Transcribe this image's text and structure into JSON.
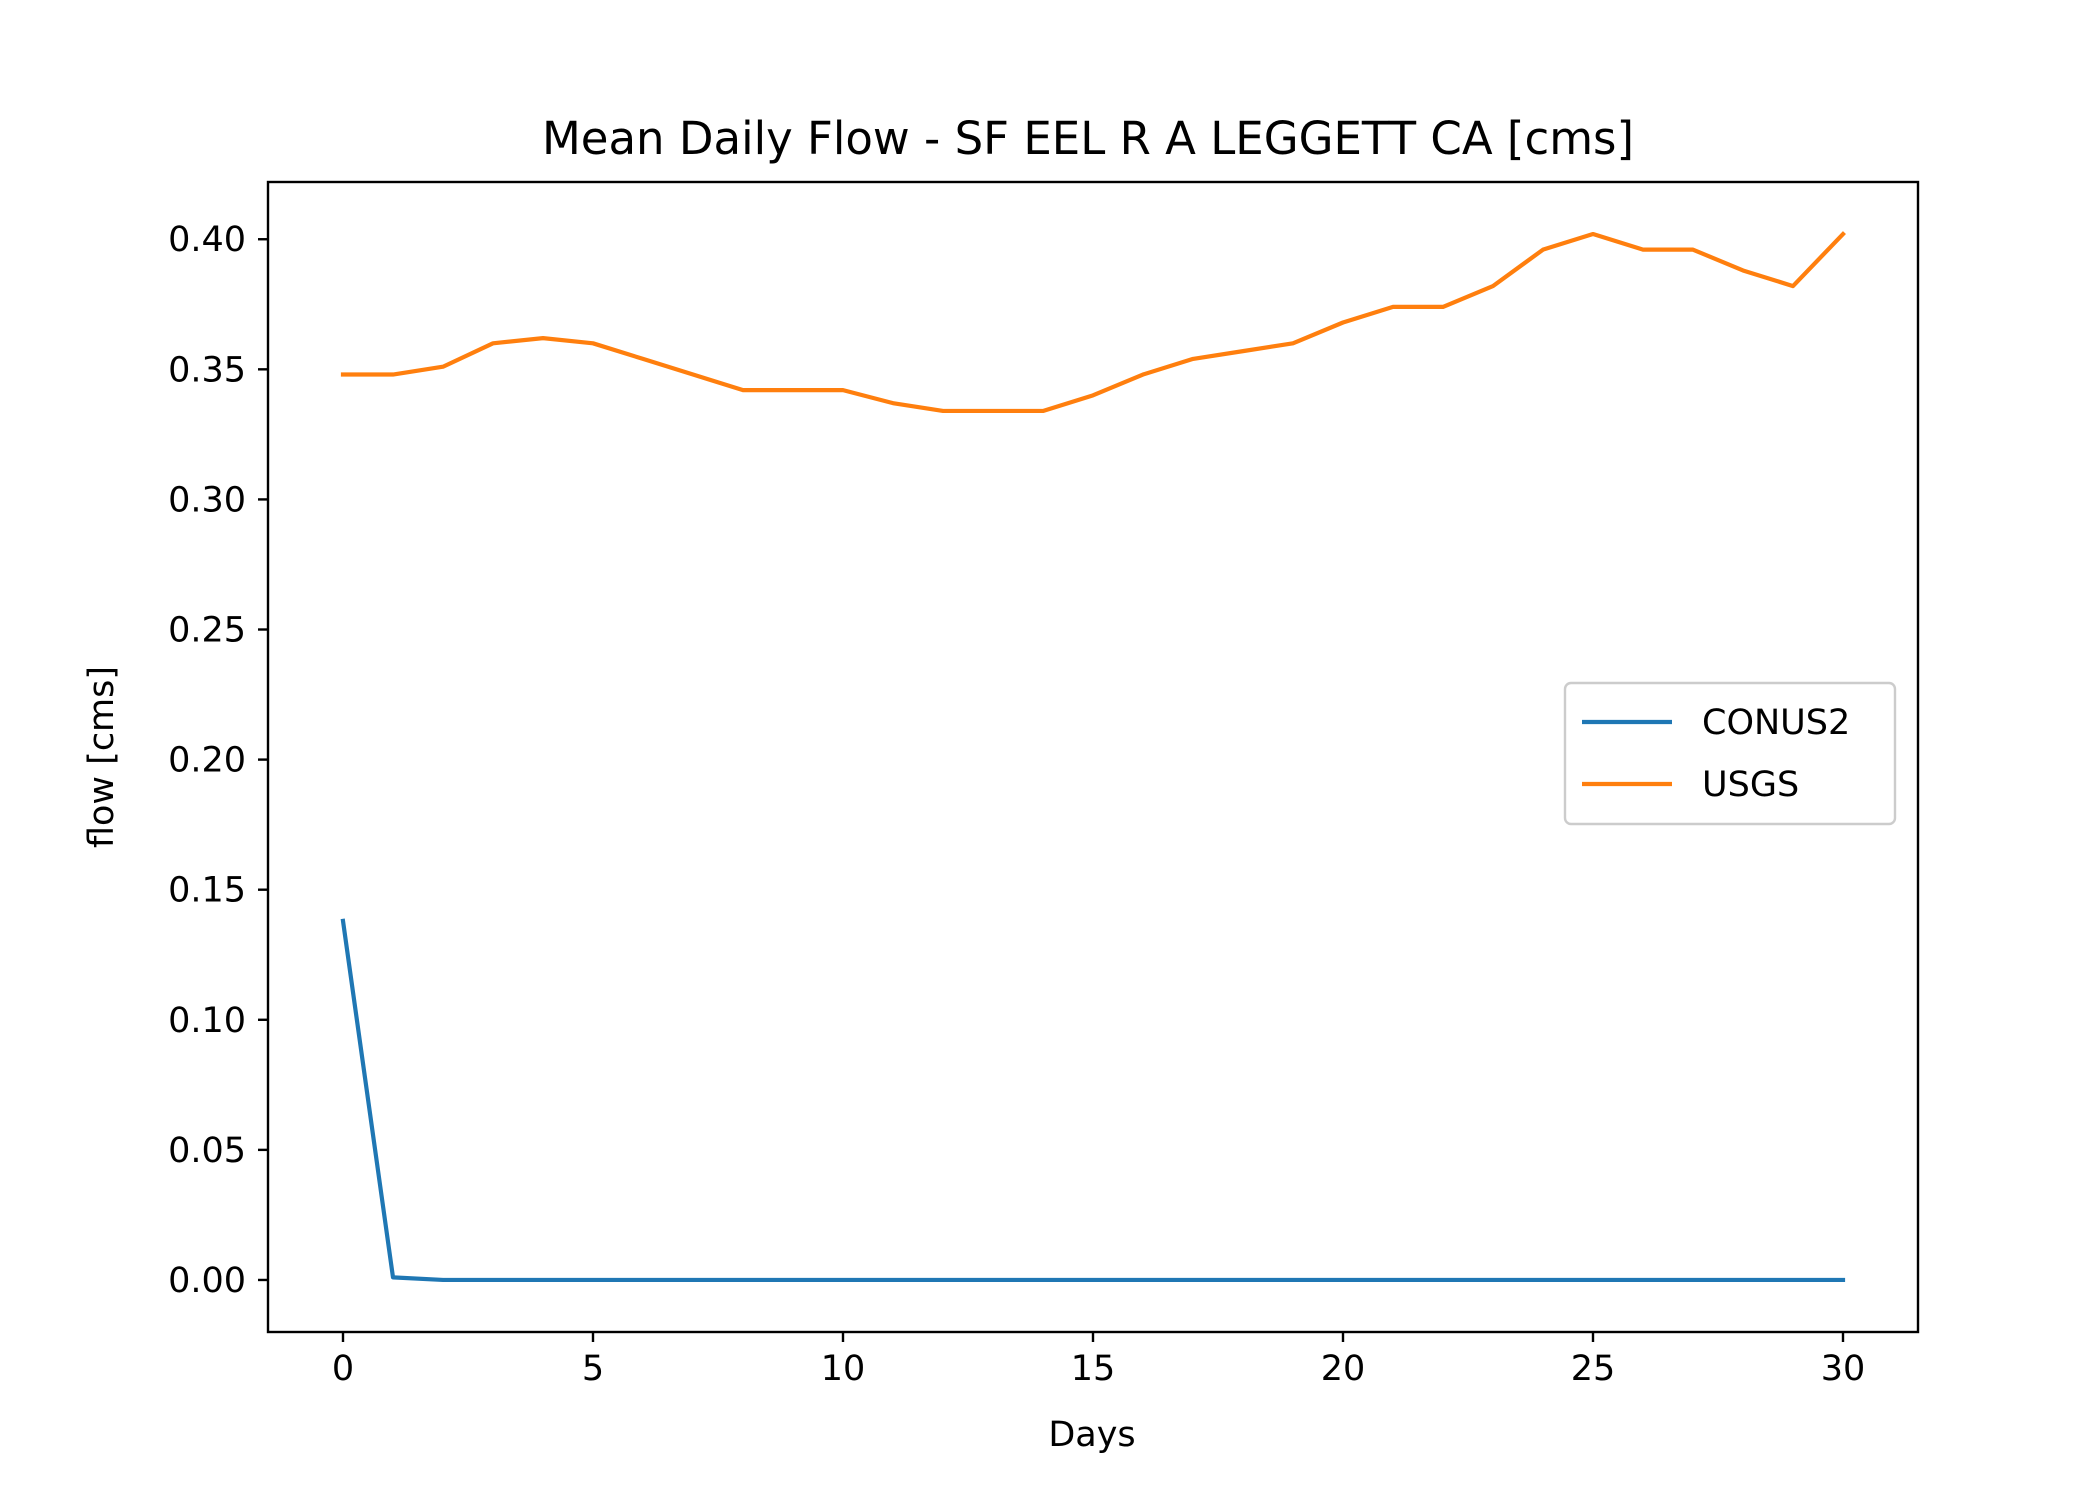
{
  "chart_data": {
    "type": "line",
    "title": "Mean Daily Flow - SF EEL R A LEGGETT CA [cms]",
    "xlabel": "Days",
    "ylabel": "flow [cms]",
    "xlim": [
      -1.5,
      31.5
    ],
    "ylim": [
      -0.02,
      0.422
    ],
    "xticks": [
      0,
      5,
      10,
      15,
      20,
      25,
      30
    ],
    "xtick_labels": [
      "0",
      "5",
      "10",
      "15",
      "20",
      "25",
      "30"
    ],
    "yticks": [
      0.0,
      0.05,
      0.1,
      0.15,
      0.2,
      0.25,
      0.3,
      0.35,
      0.4
    ],
    "ytick_labels": [
      "0.00",
      "0.05",
      "0.10",
      "0.15",
      "0.20",
      "0.25",
      "0.30",
      "0.35",
      "0.40"
    ],
    "grid": false,
    "legend_position": "center-right",
    "x": [
      0,
      1,
      2,
      3,
      4,
      5,
      6,
      7,
      8,
      9,
      10,
      11,
      12,
      13,
      14,
      15,
      16,
      17,
      18,
      19,
      20,
      21,
      22,
      23,
      24,
      25,
      26,
      27,
      28,
      29,
      30
    ],
    "series": [
      {
        "name": "CONUS2",
        "color": "#1f77b4",
        "values": [
          0.138,
          0.001,
          0.0,
          0.0,
          0.0,
          0.0,
          0.0,
          0.0,
          0.0,
          0.0,
          0.0,
          0.0,
          0.0,
          0.0,
          0.0,
          0.0,
          0.0,
          0.0,
          0.0,
          0.0,
          0.0,
          0.0,
          0.0,
          0.0,
          0.0,
          0.0,
          0.0,
          0.0,
          0.0,
          0.0,
          0.0
        ]
      },
      {
        "name": "USGS",
        "color": "#ff7f0e",
        "values": [
          0.348,
          0.348,
          0.351,
          0.36,
          0.362,
          0.36,
          0.354,
          0.348,
          0.342,
          0.342,
          0.342,
          0.337,
          0.334,
          0.334,
          0.334,
          0.34,
          0.348,
          0.354,
          0.357,
          0.36,
          0.368,
          0.374,
          0.374,
          0.382,
          0.396,
          0.402,
          0.396,
          0.396,
          0.388,
          0.382,
          0.402
        ]
      }
    ]
  }
}
